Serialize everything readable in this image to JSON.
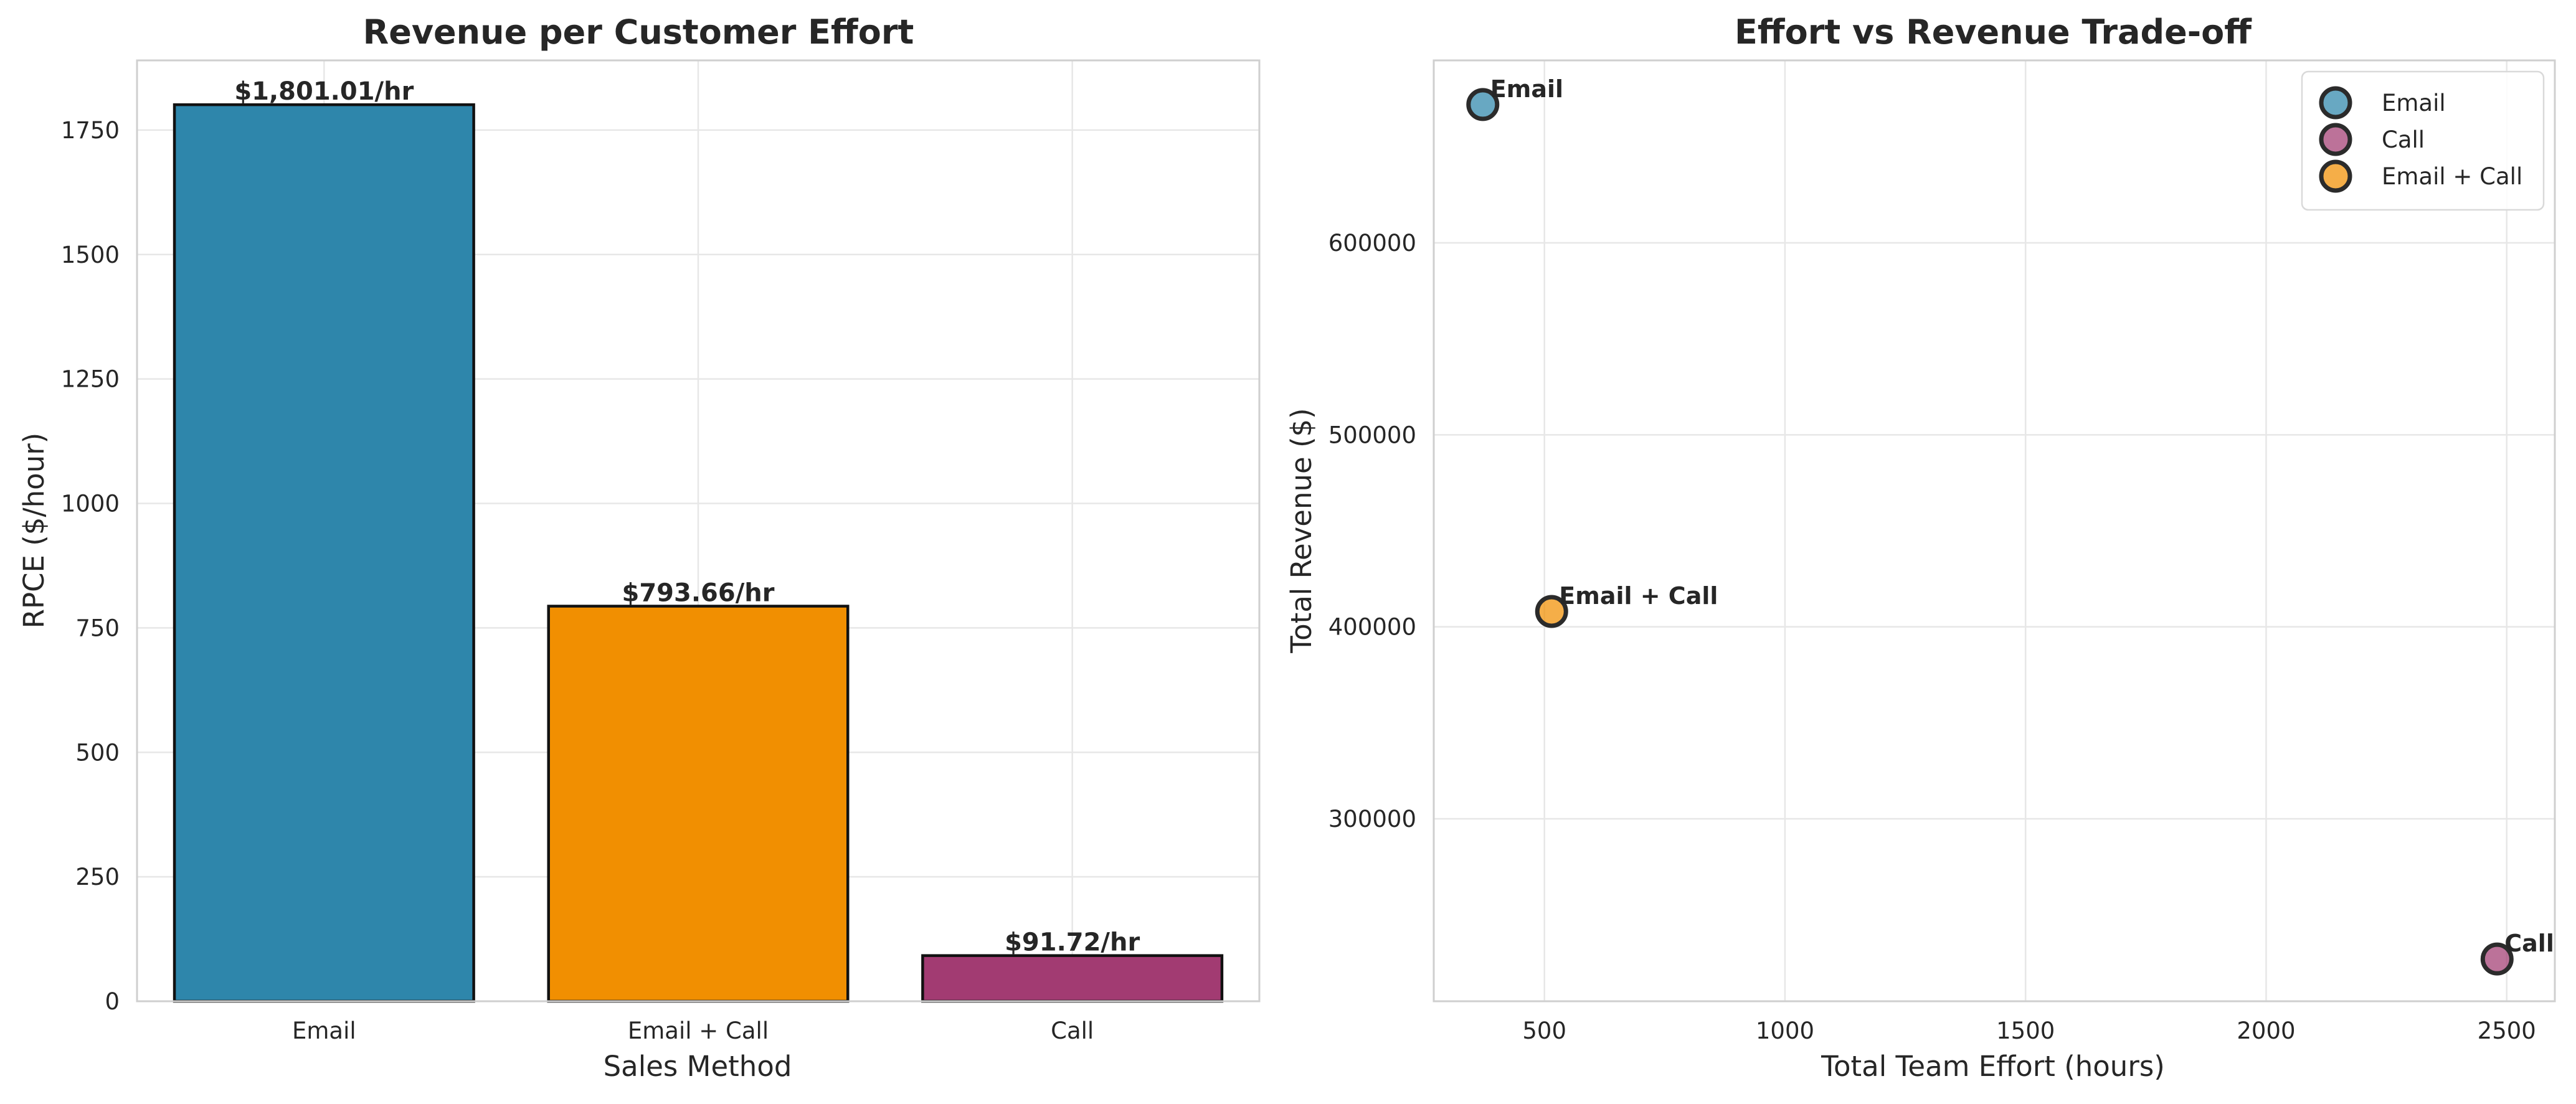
{
  "chart_data": [
    {
      "type": "bar",
      "title": "Revenue per Customer Effort",
      "xlabel": "Sales Method",
      "ylabel": "RPCE ($/hour)",
      "categories": [
        "Email",
        "Email + Call",
        "Call"
      ],
      "values": [
        1801.01,
        793.66,
        91.72
      ],
      "data_labels": [
        "$1,801.01/hr",
        "$793.66/hr",
        "$91.72/hr"
      ],
      "colors": [
        "#2e86ab",
        "#f18f01",
        "#a23b72"
      ],
      "ylim": [
        0,
        1890
      ],
      "yticks": [
        0,
        250,
        500,
        750,
        1000,
        1250,
        1500,
        1750
      ],
      "grid": true
    },
    {
      "type": "scatter",
      "title": "Effort vs Revenue Trade-off",
      "xlabel": "Total Team Effort (hours)",
      "ylabel": "Total Revenue ($)",
      "xlim": [
        270,
        2600
      ],
      "ylim": [
        205000,
        695000
      ],
      "xticks": [
        500,
        1000,
        1500,
        2000,
        2500
      ],
      "yticks": [
        300000,
        400000,
        500000,
        600000
      ],
      "legend": "top-right",
      "grid": true,
      "series": [
        {
          "name": "Email",
          "x": 372,
          "y": 672000,
          "color": "#2e86ab"
        },
        {
          "name": "Call",
          "x": 2480,
          "y": 227000,
          "color": "#a23b72"
        },
        {
          "name": "Email + Call",
          "x": 515,
          "y": 408000,
          "color": "#f18f01"
        }
      ]
    }
  ]
}
